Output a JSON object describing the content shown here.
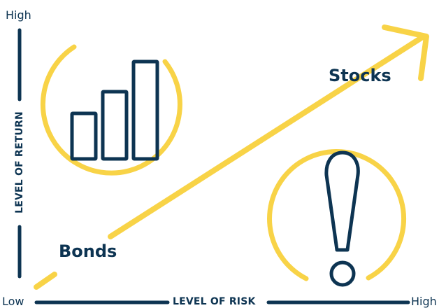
{
  "axes": {
    "y_high": "High",
    "y_title": "LEVEL OF RETURN",
    "x_low": "Low",
    "x_title": "LEVEL OF RISK",
    "x_high": "High"
  },
  "labels": {
    "stocks": "Stocks",
    "bonds": "Bonds"
  },
  "icons": {
    "return": "bar-chart-icon",
    "risk": "exclamation-icon"
  },
  "colors": {
    "navy": "#0d3452",
    "yellow": "#f8d347",
    "background": "#ffffff"
  }
}
